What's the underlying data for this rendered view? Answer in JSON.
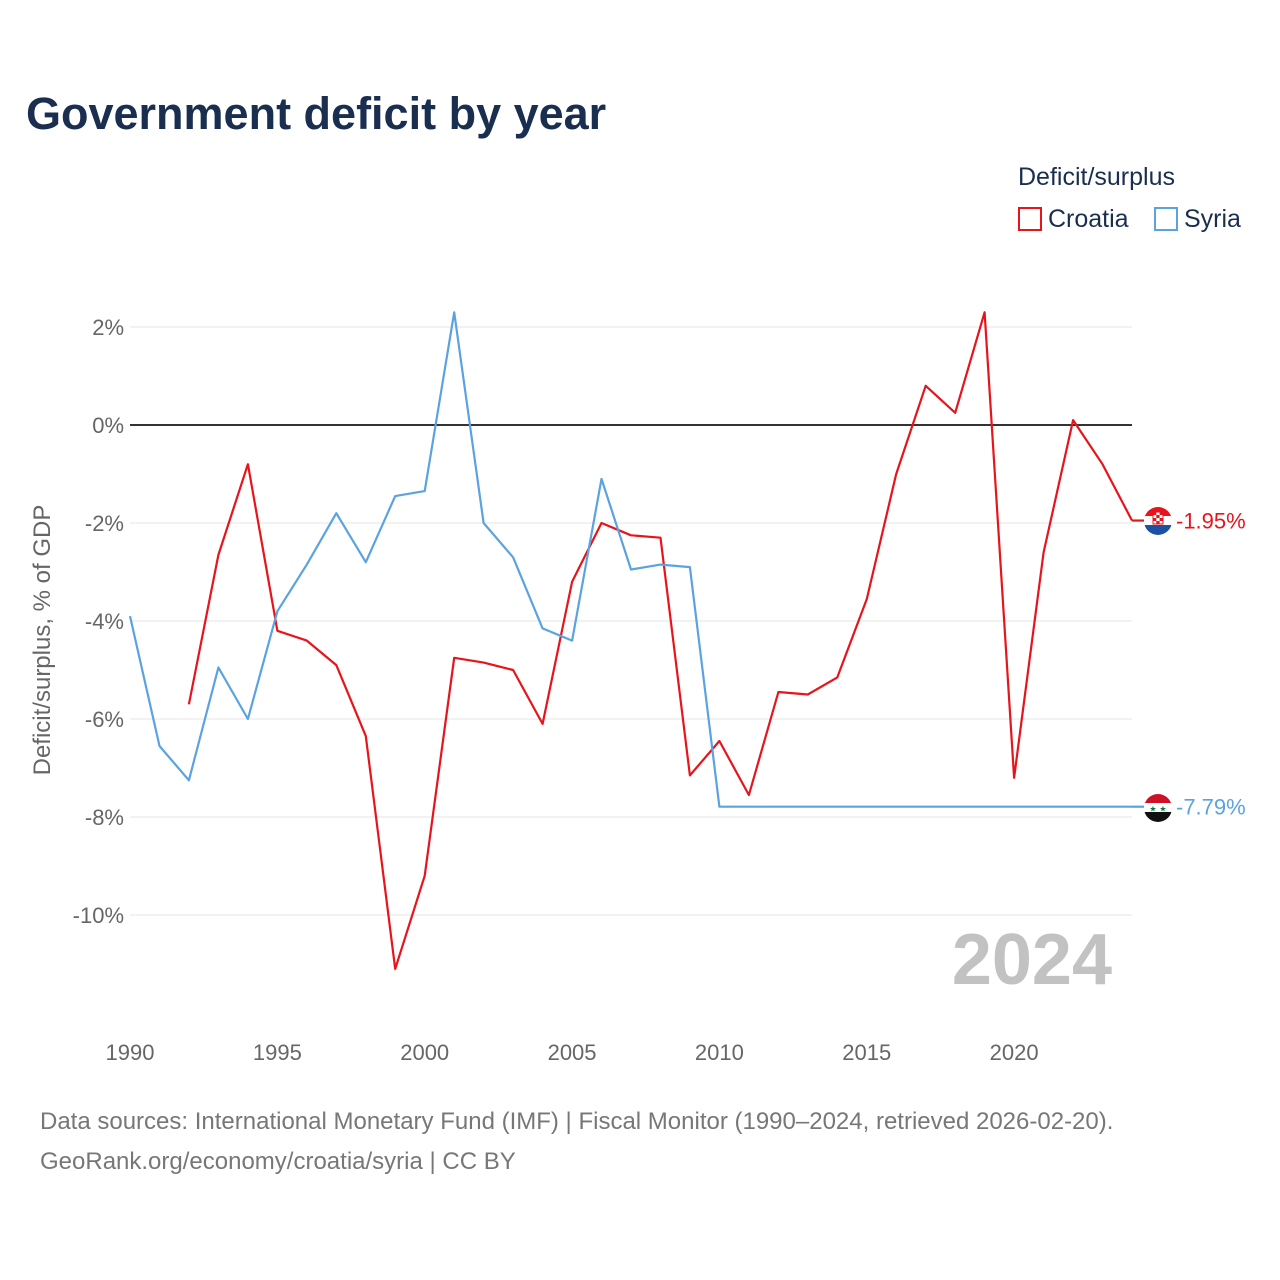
{
  "chart_data": {
    "type": "line",
    "title": "Government deficit by year",
    "xlabel": "",
    "ylabel": "Deficit/surplus, % of GDP",
    "xlim": [
      1990,
      2024
    ],
    "ylim": [
      -12,
      3
    ],
    "x_ticks": [
      1990,
      1995,
      2000,
      2005,
      2010,
      2015,
      2020
    ],
    "y_ticks": [
      2,
      0,
      -2,
      -4,
      -6,
      -8,
      -10
    ],
    "y_tick_labels": [
      "2%",
      "0%",
      "-2%",
      "-4%",
      "-6%",
      "-8%",
      "-10%"
    ],
    "legend_title": "Deficit/surplus",
    "legend_position": "top-right",
    "year_watermark": "2024",
    "series": [
      {
        "name": "Croatia",
        "color": "#e8141b",
        "end_label": "-1.95%",
        "flag_icon": "croatia-flag-icon",
        "points": [
          [
            1992,
            -5.7
          ],
          [
            1993,
            -2.65
          ],
          [
            1994,
            -0.8
          ],
          [
            1995,
            -4.2
          ],
          [
            1996,
            -4.4
          ],
          [
            1997,
            -4.9
          ],
          [
            1998,
            -6.35
          ],
          [
            1999,
            -11.1
          ],
          [
            2000,
            -9.2
          ],
          [
            2001,
            -4.75
          ],
          [
            2002,
            -4.85
          ],
          [
            2003,
            -5.0
          ],
          [
            2004,
            -6.1
          ],
          [
            2005,
            -3.2
          ],
          [
            2006,
            -2.0
          ],
          [
            2007,
            -2.25
          ],
          [
            2008,
            -2.3
          ],
          [
            2009,
            -7.15
          ],
          [
            2010,
            -6.45
          ],
          [
            2011,
            -7.55
          ],
          [
            2012,
            -5.45
          ],
          [
            2013,
            -5.5
          ],
          [
            2014,
            -5.15
          ],
          [
            2015,
            -3.55
          ],
          [
            2016,
            -1.0
          ],
          [
            2017,
            0.8
          ],
          [
            2018,
            0.25
          ],
          [
            2019,
            2.3
          ],
          [
            2020,
            -7.2
          ],
          [
            2021,
            -2.6
          ],
          [
            2022,
            0.1
          ],
          [
            2023,
            -0.8
          ],
          [
            2024,
            -1.95
          ]
        ]
      },
      {
        "name": "Syria",
        "color": "#5aa3e0",
        "end_label": "-7.79%",
        "flag_icon": "syria-flag-icon",
        "points": [
          [
            1990,
            -3.9
          ],
          [
            1991,
            -6.55
          ],
          [
            1992,
            -7.25
          ],
          [
            1993,
            -4.95
          ],
          [
            1994,
            -6.0
          ],
          [
            1995,
            -3.8
          ],
          [
            1996,
            -2.85
          ],
          [
            1997,
            -1.8
          ],
          [
            1998,
            -2.8
          ],
          [
            1999,
            -1.45
          ],
          [
            2000,
            -1.35
          ],
          [
            2001,
            2.3
          ],
          [
            2002,
            -2.0
          ],
          [
            2003,
            -2.7
          ],
          [
            2004,
            -4.15
          ],
          [
            2005,
            -4.4
          ],
          [
            2006,
            -1.1
          ],
          [
            2007,
            -2.95
          ],
          [
            2008,
            -2.85
          ],
          [
            2009,
            -2.9
          ],
          [
            2010,
            -7.79
          ],
          [
            2011,
            -7.79
          ],
          [
            2012,
            -7.79
          ],
          [
            2013,
            -7.79
          ],
          [
            2014,
            -7.79
          ],
          [
            2015,
            -7.79
          ],
          [
            2016,
            -7.79
          ],
          [
            2017,
            -7.79
          ],
          [
            2018,
            -7.79
          ],
          [
            2019,
            -7.79
          ],
          [
            2020,
            -7.79
          ],
          [
            2021,
            -7.79
          ],
          [
            2022,
            -7.79
          ],
          [
            2023,
            -7.79
          ],
          [
            2024,
            -7.79
          ]
        ]
      }
    ]
  },
  "footer": {
    "sources": "Data sources: International Monetary Fund (IMF) | Fiscal Monitor (1990–2024, retrieved 2026-02-20).",
    "credit": "GeoRank.org/economy/croatia/syria | CC BY"
  }
}
